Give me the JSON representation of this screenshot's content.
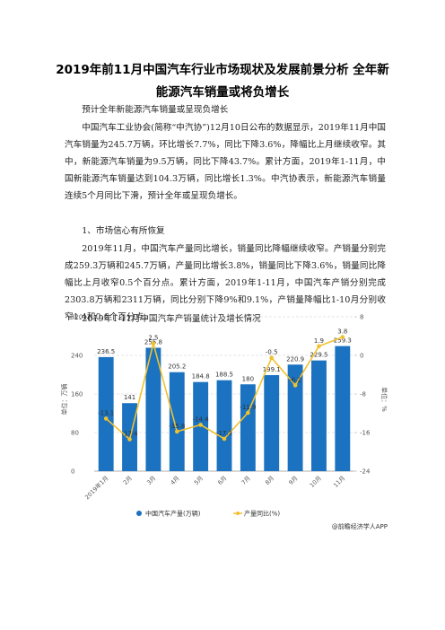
{
  "document": {
    "title": "2019年前11月中国汽车行业市场现状及发展前景分析 全年新能源汽车销量或将负增长",
    "paragraphs": [
      "预计全年新能源汽车销量或呈现负增长",
      "中国汽车工业协会(简称“中汽协”)12月10日公布的数据显示，2019年11月中国汽车销量为245.7万辆，环比增长7.7%，同比下降3.6%，降幅比上月继续收窄。其中，新能源汽车销量为9.5万辆，同比下降43.7%。累计方面，2019年1-11月，中国新能源汽车销量达到104.3万辆，同比增长1.3%。中汽协表示，新能源汽车销量连续5个月同比下滑，预计全年或呈现负增长。",
      "1、市场信心有所恢复",
      "2019年11月，中国汽车产量同比增长，销量同比降幅继续收窄。产销量分别完成259.3万辆和245.7万辆，产量同比增长3.8%，销量同比下降3.6%，销量同比降幅比上月收窄0.5个百分点。累计方面，2019年1-11月，中国汽车产销分别完成2303.8万辆和2311万辆，同比分别下降9%和9.1%，产销量降幅比1-10月分别收窄1.4和0.6个百分点。",
      "2019年1-11月中国汽车产销量统计及增长情况"
    ]
  },
  "chart_data": {
    "type": "bar-line",
    "ylabel": "单位：万辆",
    "y2label": "单位：%",
    "categories": [
      "2019年1月",
      "2月",
      "3月",
      "4月",
      "5月",
      "6月",
      "7月",
      "8月",
      "9月",
      "10月",
      "11月"
    ],
    "series": [
      {
        "name": "中国汽车产量(万辆)",
        "color": "#1a72c0",
        "type": "bar",
        "values": [
          236.5,
          141,
          255.8,
          205.2,
          184.8,
          188.5,
          180,
          199.1,
          220.9,
          229.5,
          259.3
        ]
      },
      {
        "name": "产量同比(%)",
        "color": "#f2c12e",
        "type": "line",
        "axis": "y2",
        "values": [
          -13.1,
          -17.4,
          2.5,
          -15.8,
          -14.4,
          -17.3,
          -11.9,
          -0.5,
          -6.2,
          1.9,
          3.8
        ]
      }
    ],
    "ylim": [
      0,
      320
    ],
    "yticks": [
      0,
      80,
      160,
      240,
      320
    ],
    "y2lim": [
      -24,
      8
    ],
    "y2ticks": [
      -24,
      -16,
      -8,
      0,
      8
    ],
    "grid": true,
    "legend": "bottom",
    "source": "@前瞻经济学人APP"
  }
}
